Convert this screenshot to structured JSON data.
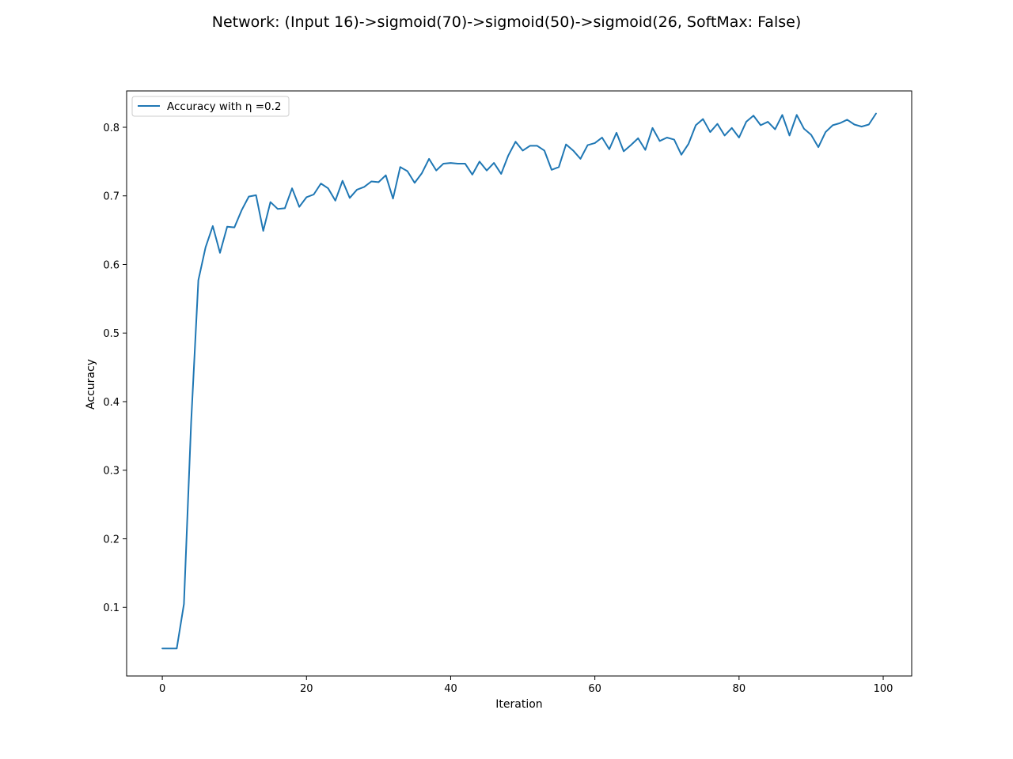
{
  "chart_data": {
    "type": "line",
    "title": "Network: (Input 16)->sigmoid(70)->sigmoid(50)->sigmoid(26, SoftMax: False)",
    "xlabel": "Iteration",
    "ylabel": "Accuracy",
    "xlim": [
      -4.95,
      103.95
    ],
    "ylim": [
      0.0,
      0.853
    ],
    "xticks": [
      0,
      20,
      40,
      60,
      80,
      100
    ],
    "yticks": [
      0.1,
      0.2,
      0.3,
      0.4,
      0.5,
      0.6,
      0.7,
      0.8
    ],
    "xtick_labels": [
      "0",
      "20",
      "40",
      "60",
      "80",
      "100"
    ],
    "ytick_labels": [
      "0.1",
      "0.2",
      "0.3",
      "0.4",
      "0.5",
      "0.6",
      "0.7",
      "0.8"
    ],
    "grid": false,
    "legend_position": "top-left",
    "series": [
      {
        "name": "Accuracy with η =0.2",
        "color": "#1f77b4",
        "x": [
          0,
          1,
          2,
          3,
          4,
          5,
          6,
          7,
          8,
          9,
          10,
          11,
          12,
          13,
          14,
          15,
          16,
          17,
          18,
          19,
          20,
          21,
          22,
          23,
          24,
          25,
          26,
          27,
          28,
          29,
          30,
          31,
          32,
          33,
          34,
          35,
          36,
          37,
          38,
          39,
          40,
          41,
          42,
          43,
          44,
          45,
          46,
          47,
          48,
          49,
          50,
          51,
          52,
          53,
          54,
          55,
          56,
          57,
          58,
          59,
          60,
          61,
          62,
          63,
          64,
          65,
          66,
          67,
          68,
          69,
          70,
          71,
          72,
          73,
          74,
          75,
          76,
          77,
          78,
          79,
          80,
          81,
          82,
          83,
          84,
          85,
          86,
          87,
          88,
          89,
          90,
          91,
          92,
          93,
          94,
          95,
          96,
          97,
          98,
          99
        ],
        "values": [
          0.04,
          0.04,
          0.04,
          0.105,
          0.37,
          0.577,
          0.625,
          0.656,
          0.617,
          0.655,
          0.654,
          0.679,
          0.699,
          0.701,
          0.649,
          0.691,
          0.681,
          0.682,
          0.711,
          0.684,
          0.698,
          0.702,
          0.718,
          0.711,
          0.693,
          0.722,
          0.697,
          0.709,
          0.713,
          0.721,
          0.72,
          0.73,
          0.696,
          0.742,
          0.736,
          0.719,
          0.733,
          0.754,
          0.737,
          0.747,
          0.748,
          0.747,
          0.747,
          0.731,
          0.75,
          0.737,
          0.748,
          0.732,
          0.759,
          0.779,
          0.766,
          0.773,
          0.773,
          0.766,
          0.738,
          0.742,
          0.775,
          0.766,
          0.754,
          0.774,
          0.777,
          0.785,
          0.768,
          0.792,
          0.765,
          0.774,
          0.784,
          0.767,
          0.799,
          0.78,
          0.785,
          0.782,
          0.76,
          0.776,
          0.803,
          0.812,
          0.793,
          0.805,
          0.788,
          0.799,
          0.785,
          0.808,
          0.817,
          0.803,
          0.808,
          0.797,
          0.818,
          0.788,
          0.818,
          0.798,
          0.789,
          0.771,
          0.793,
          0.803,
          0.806,
          0.811,
          0.804,
          0.801,
          0.804,
          0.82
        ]
      }
    ]
  }
}
